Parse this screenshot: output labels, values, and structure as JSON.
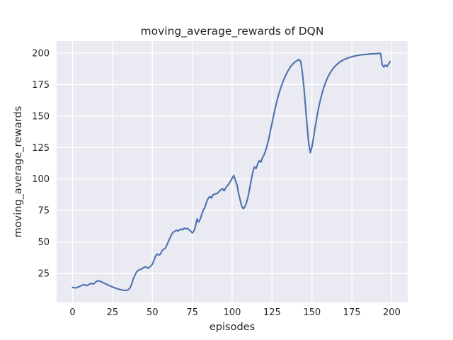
{
  "figure": {
    "title": "moving_average_rewards of DQN",
    "xlabel": "episodes",
    "ylabel": "moving_average_rewards"
  },
  "chart_data": {
    "type": "line",
    "title": "moving_average_rewards of DQN",
    "xlabel": "episodes",
    "ylabel": "moving_average_rewards",
    "legend": "none",
    "grid": true,
    "style": "seaborn-darkgrid",
    "plot_background": "#eaeaf2",
    "grid_color": "#ffffff",
    "line_color": "#4c72b0",
    "text_color": "#262626",
    "xlim": [
      -10,
      210
    ],
    "ylim": [
      2,
      209.5
    ],
    "xticks": [
      0,
      25,
      50,
      75,
      100,
      125,
      150,
      175,
      200
    ],
    "yticks": [
      25,
      50,
      75,
      100,
      125,
      150,
      175,
      200
    ],
    "series": [
      {
        "name": "moving_average_rewards",
        "x_start": 0,
        "x_step": 1,
        "y": [
          14.0,
          13.7,
          13.5,
          14.0,
          14.5,
          15.1,
          15.6,
          16.3,
          15.7,
          15.4,
          16.1,
          16.8,
          17.1,
          16.7,
          17.6,
          18.8,
          19.2,
          18.9,
          18.4,
          17.8,
          17.1,
          16.6,
          16.0,
          15.4,
          14.8,
          14.3,
          13.8,
          13.3,
          12.9,
          12.5,
          12.2,
          11.9,
          11.7,
          11.6,
          11.7,
          12.1,
          13.6,
          16.5,
          20.5,
          23.6,
          26.0,
          27.4,
          28.0,
          28.4,
          29.3,
          30.0,
          30.3,
          29.2,
          29.8,
          30.9,
          32.4,
          35.4,
          38.8,
          40.4,
          39.7,
          40.3,
          42.9,
          44.3,
          44.9,
          47.4,
          50.3,
          53.2,
          55.8,
          57.8,
          58.4,
          59.4,
          58.6,
          59.7,
          60.2,
          59.7,
          61.0,
          60.4,
          60.8,
          59.7,
          58.7,
          57.2,
          58.6,
          62.2,
          68.3,
          65.9,
          68.1,
          72.3,
          75.4,
          77.9,
          81.9,
          84.7,
          86.1,
          84.9,
          87.4,
          88.0,
          88.3,
          88.9,
          90.4,
          91.5,
          92.3,
          90.6,
          93.0,
          94.6,
          96.2,
          98.4,
          100.6,
          102.9,
          99.0,
          95.4,
          88.9,
          83.4,
          78.4,
          76.4,
          78.1,
          81.4,
          86.0,
          92.8,
          99.6,
          105.8,
          109.6,
          108.4,
          112.1,
          114.6,
          113.4,
          116.9,
          119.2,
          122.6,
          127.0,
          132.4,
          138.4,
          144.5,
          150.6,
          156.4,
          161.6,
          166.4,
          170.6,
          174.4,
          177.8,
          180.8,
          183.5,
          185.9,
          188.0,
          189.8,
          191.3,
          192.5,
          193.5,
          194.3,
          194.8,
          193.2,
          184.5,
          172.0,
          157.0,
          141.5,
          128.0,
          120.8,
          125.5,
          133.0,
          141.0,
          148.5,
          155.3,
          161.3,
          166.5,
          171.0,
          174.9,
          178.2,
          181.0,
          183.4,
          185.5,
          187.3,
          188.9,
          190.2,
          191.4,
          192.4,
          193.3,
          194.1,
          194.7,
          195.3,
          195.8,
          196.3,
          196.7,
          197.1,
          197.4,
          197.7,
          198.0,
          198.2,
          198.4,
          198.6,
          198.7,
          198.9,
          199.0,
          199.1,
          199.2,
          199.3,
          199.4,
          199.4,
          199.5,
          199.6,
          199.6,
          199.7,
          190.8,
          188.9,
          190.4,
          189.3,
          191.3,
          193.2
        ]
      }
    ]
  }
}
